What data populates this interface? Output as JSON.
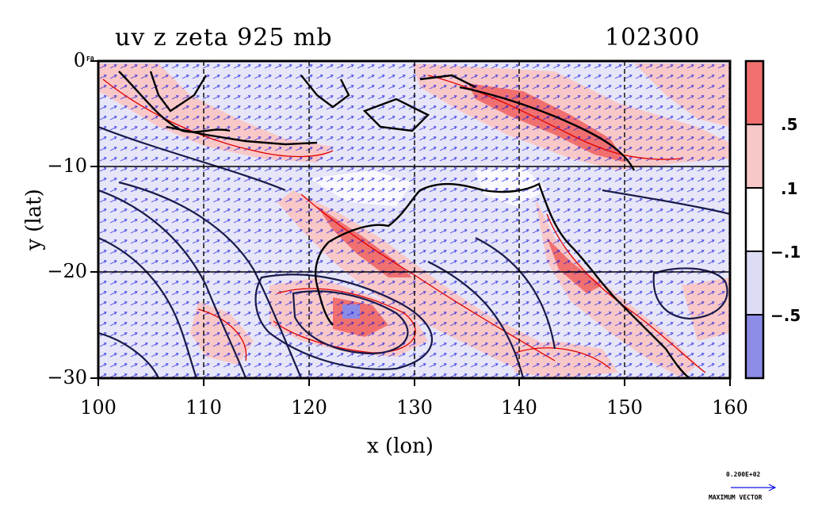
{
  "title": {
    "left": "uv z zeta 925 mb",
    "right": "102300"
  },
  "axes": {
    "xlabel": "x (lon)",
    "ylabel": "y (lat)",
    "xticks": [
      "100",
      "110",
      "120",
      "130",
      "140",
      "150",
      "160"
    ],
    "yticks": [
      "0",
      "−10",
      "−20",
      "−30"
    ],
    "x_range": [
      100,
      160
    ],
    "y_range": [
      -30,
      0
    ]
  },
  "colorbar": {
    "labels": [
      ".5",
      ".1",
      "−.1",
      "−.5"
    ],
    "colors": {
      "strong_pos": "#f07070",
      "weak_pos": "#f8c8c8",
      "neutral": "#ffffff",
      "weak_neg": "#dcdcf4",
      "strong_neg": "#8c8ce6"
    }
  },
  "colors": {
    "contour": "#1a1a4a",
    "vector": "#1010e0",
    "zeta_pos_line": "#e00000"
  },
  "footer": {
    "max_vector_value": "0.200E+02",
    "max_vector_label": "MAXIMUM VECTOR"
  },
  "corner_label": "F0"
}
